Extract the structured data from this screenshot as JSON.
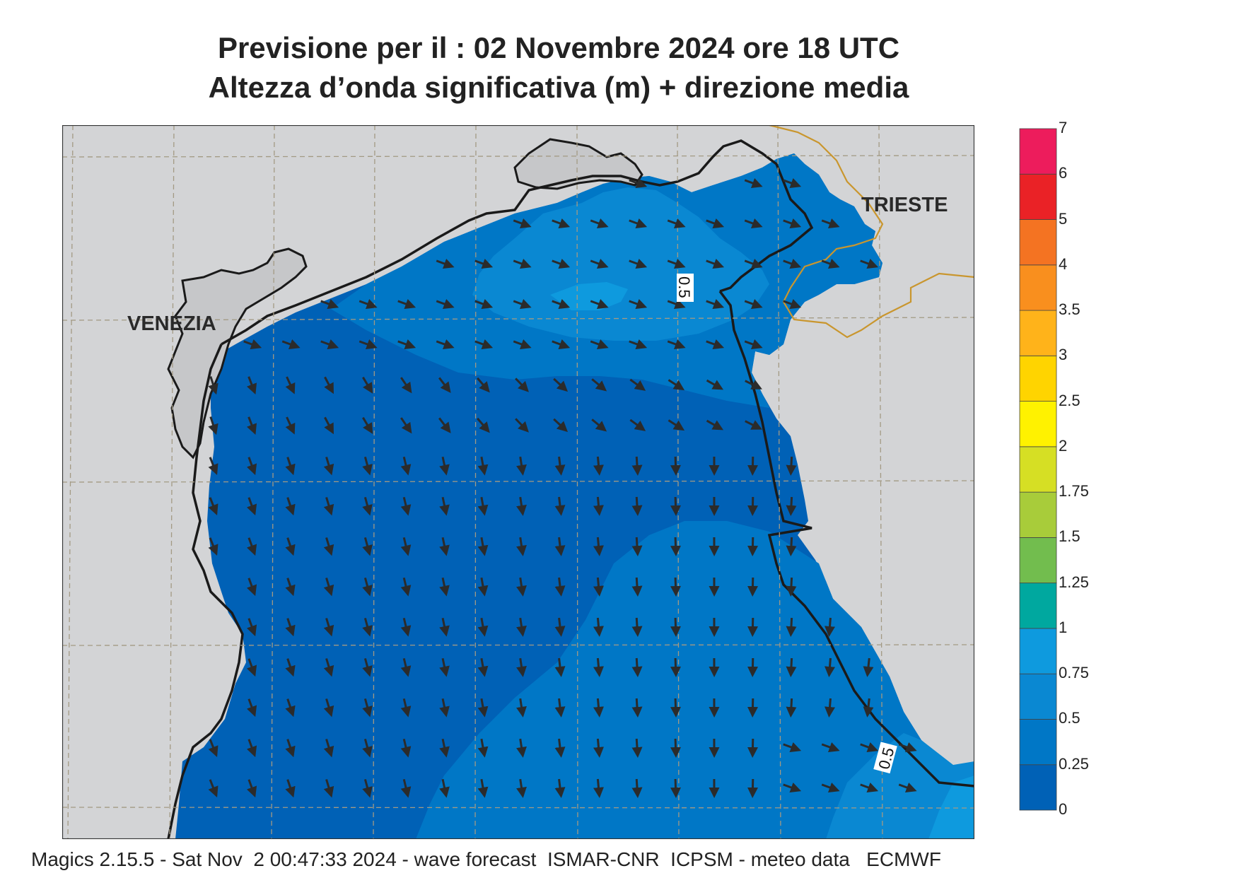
{
  "title_line1": "Previsione per il  :  02 Novembre  2024   ore 18 UTC",
  "title_line2": "Altezza d’onda significativa (m) + direzione media",
  "footer": "Magics 2.15.5 - Sat Nov  2 00:47:33 2024 - wave forecast  ISMAR-CNR  ICPSM - meteo data   ECMWF",
  "cities": {
    "venezia": "VENEZIA",
    "trieste": "TRIESTE"
  },
  "contour_labels": [
    "0.5",
    "0.5"
  ],
  "legend": {
    "levels": [
      "0",
      "0.25",
      "0.5",
      "0.75",
      "1",
      "1.25",
      "1.5",
      "1.75",
      "2",
      "2.5",
      "3",
      "3.5",
      "4",
      "5",
      "6",
      "7"
    ],
    "colors": [
      "#0061b6",
      "#0077c6",
      "#0a88d2",
      "#0e9ade",
      "#00a89f",
      "#72bd4e",
      "#a8cc3a",
      "#d6df24",
      "#fff200",
      "#ffd400",
      "#ffb31a",
      "#f98f1e",
      "#f47322",
      "#ea2226",
      "#ed1c5c"
    ]
  },
  "colors": {
    "land": "#d3d4d6",
    "grid": "#a39a84",
    "coast": "#1a1a1a",
    "border": "#c9962e",
    "arrow": "#2b2b2b"
  }
}
